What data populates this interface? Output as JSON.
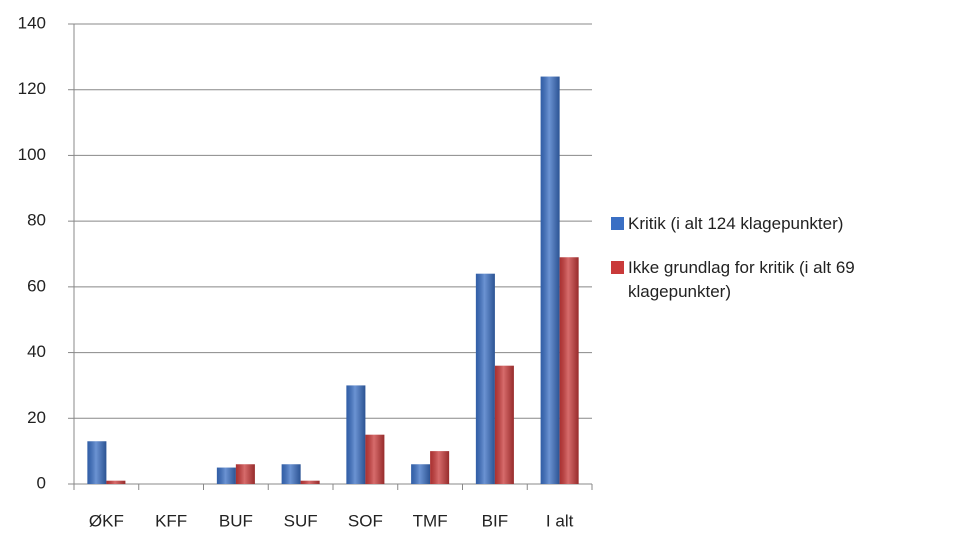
{
  "chart_data": {
    "type": "bar",
    "categories": [
      "ØKF",
      "KFF",
      "BUF",
      "SUF",
      "SOF",
      "TMF",
      "BIF",
      "I alt"
    ],
    "series": [
      {
        "name": "Kritik (i alt 124 klagepunkter)",
        "color": "#3a6fc4",
        "values": [
          13,
          0,
          5,
          6,
          30,
          6,
          64,
          124
        ]
      },
      {
        "name": "Ikke grundlag for kritik (i alt 69 klagepunkter)",
        "color": "#c93a3a",
        "values": [
          1,
          0,
          6,
          1,
          15,
          10,
          36,
          69
        ]
      }
    ],
    "ylim": [
      0,
      140
    ],
    "yticks": [
      0,
      20,
      40,
      60,
      80,
      100,
      120,
      140
    ],
    "grid": true,
    "legend": "right"
  }
}
